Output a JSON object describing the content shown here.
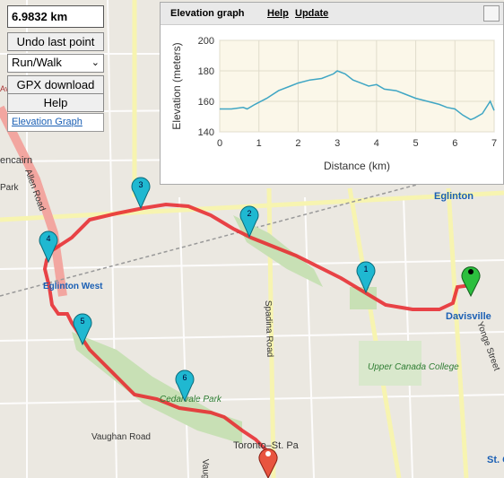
{
  "controls": {
    "distance": "6.9832 km",
    "undo_label": "Undo last point",
    "mode_value": "Run/Walk",
    "gpx_label": "GPX download",
    "help_label": "Help",
    "elevation_link": "Elevation Graph"
  },
  "elevation_panel": {
    "title": "Elevation graph",
    "help": "Help",
    "update": "Update"
  },
  "map_labels": {
    "eglinton_east": "Eglinton",
    "eglinton_west": "Eglinton West",
    "davisville": "Davisville",
    "upper_canada": "Upper Canada College",
    "spadina": "Spadina Road",
    "allen": "Allen Road",
    "cedarvale": "Cedarvale Park",
    "vaughan": "Vaughan Road",
    "toronto_st": "Toronto–St. Pa",
    "yonge": "Yonge Street",
    "glencairn": "encairn",
    "avenue": "Avenue",
    "park": "Park",
    "st_c": "St. C",
    "vaug": "Vaug"
  },
  "markers": [
    "1",
    "2",
    "3",
    "4",
    "5",
    "6"
  ],
  "chart_data": {
    "type": "line",
    "xlabel": "Distance (km)",
    "ylabel": "Elevation (meters)",
    "xlim": [
      0,
      7
    ],
    "ylim": [
      140,
      200
    ],
    "xticks": [
      0,
      1,
      2,
      3,
      4,
      5,
      6,
      7
    ],
    "yticks": [
      140,
      160,
      180,
      200
    ],
    "series": [
      {
        "color": "#3fa6c4",
        "x": [
          0,
          0.3,
          0.6,
          0.7,
          0.9,
          1.2,
          1.5,
          1.8,
          2.0,
          2.3,
          2.6,
          2.9,
          3.0,
          3.2,
          3.4,
          3.6,
          3.8,
          4.0,
          4.2,
          4.5,
          4.7,
          5.0,
          5.3,
          5.6,
          5.8,
          6.0,
          6.2,
          6.4,
          6.5,
          6.7,
          6.9,
          7.0
        ],
        "y": [
          155,
          155,
          156,
          155,
          158,
          162,
          167,
          170,
          172,
          174,
          175,
          178,
          180,
          178,
          174,
          172,
          170,
          171,
          168,
          167,
          165,
          162,
          160,
          158,
          156,
          155,
          151,
          148,
          149,
          152,
          160,
          154
        ]
      }
    ]
  }
}
